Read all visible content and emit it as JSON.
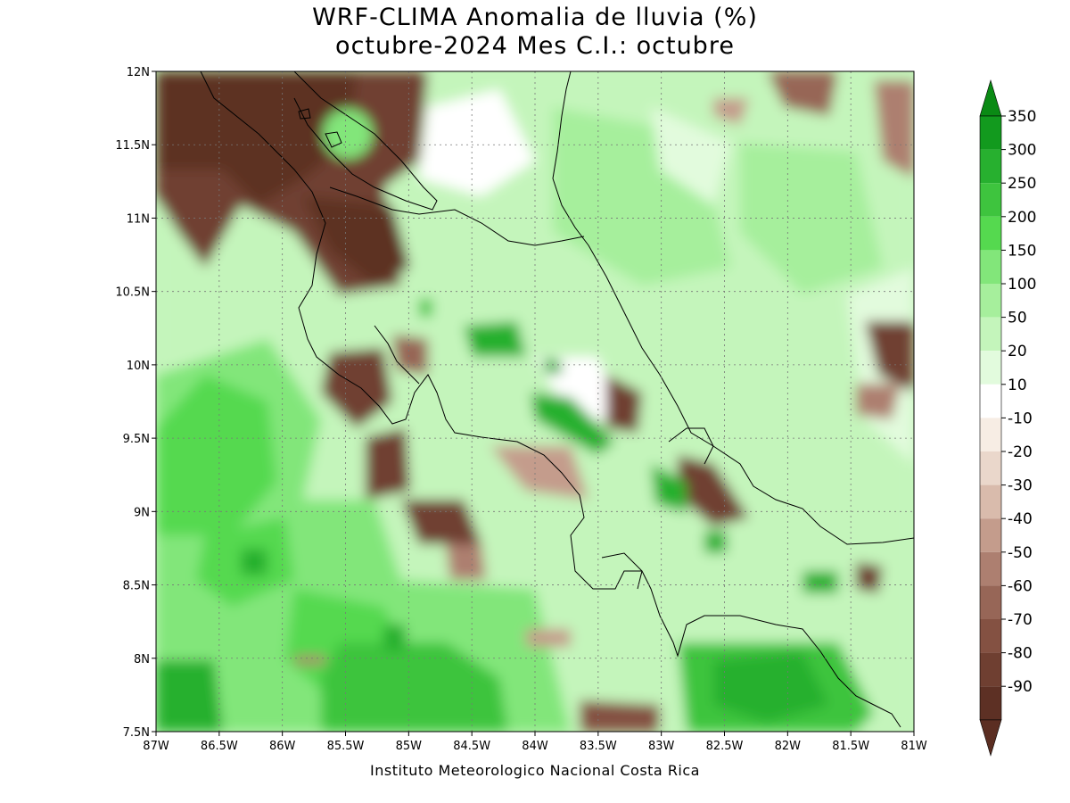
{
  "title": {
    "line1": "WRF-CLIMA Anomalia de lluvia (%)",
    "line2": "octubre-2024 Mes C.I.: octubre"
  },
  "footer": "Instituto Meteorologico Nacional Costa Rica",
  "map": {
    "lon_range": [
      -87,
      -81
    ],
    "lat_range": [
      7.5,
      12
    ],
    "x_ticks": [
      "87W",
      "86.5W",
      "86W",
      "85.5W",
      "85W",
      "84.5W",
      "84W",
      "83.5W",
      "83W",
      "82.5W",
      "82W",
      "81.5W",
      "81W"
    ],
    "y_ticks": [
      "7.5N",
      "8N",
      "8.5N",
      "9N",
      "9.5N",
      "10N",
      "10.5N",
      "11N",
      "11.5N",
      "12N"
    ],
    "grid": "dotted"
  },
  "colorbar": {
    "labels": [
      "350",
      "300",
      "250",
      "200",
      "150",
      "100",
      "50",
      "20",
      "10",
      "-10",
      "-20",
      "-30",
      "-40",
      "-50",
      "-60",
      "-70",
      "-80",
      "-90"
    ],
    "colors": [
      "#129a1e",
      "#27b02f",
      "#3ec43e",
      "#55d94f",
      "#82e67a",
      "#a6ef9c",
      "#c4f5bb",
      "#e2fbdd",
      "#ffffff",
      "#f7ede4",
      "#ead7cb",
      "#d9bbac",
      "#c49c8c",
      "#ad7f70",
      "#976657",
      "#845142",
      "#6f3f31",
      "#5d3024"
    ],
    "top_arrow_color": "#0a8a14",
    "bottom_arrow_color": "#5b2e22"
  }
}
